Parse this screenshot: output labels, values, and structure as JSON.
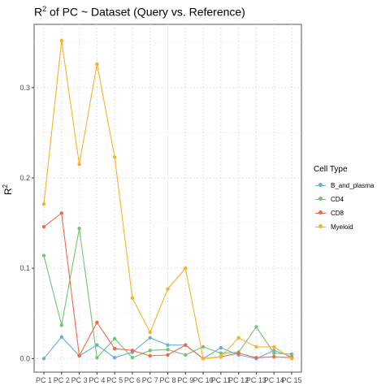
{
  "chart_data": {
    "type": "line",
    "title": "of PC ~  Dataset (Query vs. Reference)",
    "title_prefix": "R",
    "title_sup": "2",
    "xlabel": "",
    "ylabel": "R",
    "ylabel_sup": "2",
    "categories": [
      "PC 1",
      "PC 2",
      "PC 3",
      "PC 4",
      "PC 5",
      "PC 6",
      "PC 7",
      "PC 8",
      "PC 9",
      "PC 10",
      "PC 11",
      "PC 12",
      "PC 13",
      "PC 14",
      "PC 15"
    ],
    "ylim": [
      -0.015,
      0.37
    ],
    "yticks": [
      0.0,
      0.1,
      0.2,
      0.3
    ],
    "ytick_labels": [
      "0.0",
      "0.1",
      "0.2",
      "0.3"
    ],
    "grid": true,
    "legend": {
      "title": "Cell Type",
      "position": "right"
    },
    "series": [
      {
        "name": "B_and_plasma",
        "color": "#6BAED6",
        "values": [
          0.0,
          0.024,
          0.003,
          0.015,
          0.001,
          0.007,
          0.023,
          0.015,
          0.015,
          0.0,
          0.012,
          0.004,
          0.0,
          0.009,
          0.002
        ]
      },
      {
        "name": "CD4",
        "color": "#74C476",
        "values": [
          0.114,
          0.037,
          0.144,
          0.001,
          0.022,
          0.001,
          0.009,
          0.01,
          0.004,
          0.013,
          0.006,
          0.007,
          0.035,
          0.006,
          0.005
        ]
      },
      {
        "name": "CD8",
        "color": "#F06A4A",
        "values": [
          0.146,
          0.161,
          0.003,
          0.04,
          0.011,
          0.009,
          0.003,
          0.004,
          0.015,
          0.0,
          0.002,
          0.006,
          0.001,
          0.002,
          0.001
        ]
      },
      {
        "name": "Myeloid",
        "color": "#F7B12A",
        "values": [
          0.171,
          0.352,
          0.215,
          0.326,
          0.223,
          0.067,
          0.029,
          0.077,
          0.1,
          0.0,
          0.002,
          0.023,
          0.013,
          0.013,
          0.0
        ]
      }
    ]
  }
}
